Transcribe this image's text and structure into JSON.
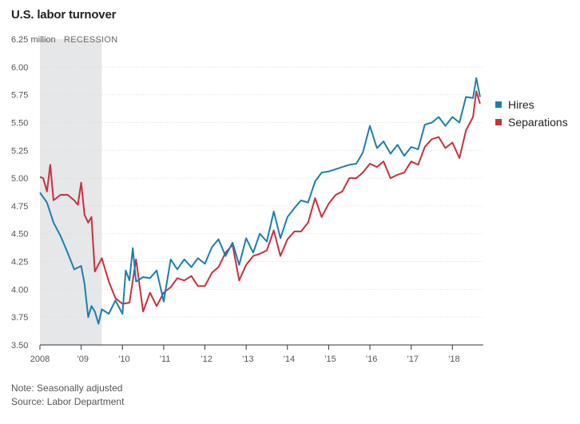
{
  "chart_data": {
    "type": "line",
    "title": "U.S. labor turnover",
    "y_unit_label": "million",
    "recession_label": "RECESSION",
    "recession_range": [
      2008.0,
      2009.5
    ],
    "ylim": [
      3.5,
      6.25
    ],
    "y_ticks": [
      3.5,
      3.75,
      4.0,
      4.25,
      4.5,
      4.75,
      5.0,
      5.25,
      5.5,
      5.75,
      6.0,
      6.25
    ],
    "y_tick_labels": [
      "3.50",
      "3.75",
      "4.00",
      "4.25",
      "4.50",
      "4.75",
      "5.00",
      "5.25",
      "5.50",
      "5.75",
      "6.00",
      "6.25"
    ],
    "xlim": [
      2008.0,
      2018.75
    ],
    "x_ticks": [
      2008,
      2009,
      2010,
      2011,
      2012,
      2013,
      2014,
      2015,
      2016,
      2017,
      2018
    ],
    "x_tick_labels": [
      "2008",
      "'09",
      "'10",
      "'11",
      "'12",
      "'13",
      "'14",
      "'15",
      "'16",
      "'17",
      "'18"
    ],
    "grid": true,
    "legend_position": "right",
    "series": [
      {
        "name": "Hires",
        "color": "#1a7fae",
        "points": [
          [
            2008.0,
            4.87
          ],
          [
            2008.17,
            4.78
          ],
          [
            2008.33,
            4.6
          ],
          [
            2008.5,
            4.48
          ],
          [
            2008.67,
            4.33
          ],
          [
            2008.83,
            4.18
          ],
          [
            2009.0,
            4.21
          ],
          [
            2009.08,
            4.05
          ],
          [
            2009.17,
            3.75
          ],
          [
            2009.25,
            3.85
          ],
          [
            2009.33,
            3.8
          ],
          [
            2009.42,
            3.69
          ],
          [
            2009.5,
            3.82
          ],
          [
            2009.67,
            3.78
          ],
          [
            2009.83,
            3.9
          ],
          [
            2010.0,
            3.78
          ],
          [
            2010.08,
            4.17
          ],
          [
            2010.17,
            4.08
          ],
          [
            2010.25,
            4.37
          ],
          [
            2010.33,
            4.07
          ],
          [
            2010.5,
            4.11
          ],
          [
            2010.67,
            4.1
          ],
          [
            2010.83,
            4.17
          ],
          [
            2011.0,
            3.89
          ],
          [
            2011.17,
            4.27
          ],
          [
            2011.33,
            4.18
          ],
          [
            2011.5,
            4.27
          ],
          [
            2011.67,
            4.2
          ],
          [
            2011.83,
            4.28
          ],
          [
            2012.0,
            4.23
          ],
          [
            2012.17,
            4.38
          ],
          [
            2012.33,
            4.45
          ],
          [
            2012.5,
            4.3
          ],
          [
            2012.67,
            4.42
          ],
          [
            2012.83,
            4.22
          ],
          [
            2013.0,
            4.46
          ],
          [
            2013.17,
            4.33
          ],
          [
            2013.33,
            4.5
          ],
          [
            2013.5,
            4.43
          ],
          [
            2013.67,
            4.7
          ],
          [
            2013.83,
            4.46
          ],
          [
            2014.0,
            4.65
          ],
          [
            2014.17,
            4.73
          ],
          [
            2014.33,
            4.8
          ],
          [
            2014.5,
            4.78
          ],
          [
            2014.67,
            4.97
          ],
          [
            2014.83,
            5.05
          ],
          [
            2015.0,
            5.06
          ],
          [
            2015.17,
            5.08
          ],
          [
            2015.33,
            5.1
          ],
          [
            2015.5,
            5.12
          ],
          [
            2015.67,
            5.13
          ],
          [
            2015.83,
            5.23
          ],
          [
            2016.0,
            5.47
          ],
          [
            2016.17,
            5.27
          ],
          [
            2016.33,
            5.33
          ],
          [
            2016.5,
            5.22
          ],
          [
            2016.67,
            5.3
          ],
          [
            2016.83,
            5.2
          ],
          [
            2017.0,
            5.28
          ],
          [
            2017.17,
            5.26
          ],
          [
            2017.33,
            5.48
          ],
          [
            2017.5,
            5.5
          ],
          [
            2017.67,
            5.55
          ],
          [
            2017.83,
            5.47
          ],
          [
            2018.0,
            5.55
          ],
          [
            2018.17,
            5.5
          ],
          [
            2018.33,
            5.73
          ],
          [
            2018.5,
            5.72
          ],
          [
            2018.58,
            5.9
          ],
          [
            2018.67,
            5.73
          ]
        ]
      },
      {
        "name": "Separations",
        "color": "#c7303d",
        "points": [
          [
            2008.0,
            5.01
          ],
          [
            2008.08,
            5.0
          ],
          [
            2008.17,
            4.88
          ],
          [
            2008.25,
            5.12
          ],
          [
            2008.33,
            4.8
          ],
          [
            2008.5,
            4.85
          ],
          [
            2008.67,
            4.85
          ],
          [
            2008.83,
            4.8
          ],
          [
            2008.92,
            4.76
          ],
          [
            2009.0,
            4.96
          ],
          [
            2009.08,
            4.67
          ],
          [
            2009.17,
            4.6
          ],
          [
            2009.25,
            4.65
          ],
          [
            2009.33,
            4.16
          ],
          [
            2009.5,
            4.28
          ],
          [
            2009.67,
            4.07
          ],
          [
            2009.83,
            3.92
          ],
          [
            2010.0,
            3.87
          ],
          [
            2010.17,
            3.88
          ],
          [
            2010.33,
            4.27
          ],
          [
            2010.5,
            3.8
          ],
          [
            2010.67,
            3.97
          ],
          [
            2010.83,
            3.85
          ],
          [
            2011.0,
            3.97
          ],
          [
            2011.17,
            4.02
          ],
          [
            2011.33,
            4.1
          ],
          [
            2011.5,
            4.08
          ],
          [
            2011.67,
            4.12
          ],
          [
            2011.83,
            4.03
          ],
          [
            2012.0,
            4.03
          ],
          [
            2012.17,
            4.15
          ],
          [
            2012.33,
            4.2
          ],
          [
            2012.5,
            4.33
          ],
          [
            2012.67,
            4.4
          ],
          [
            2012.83,
            4.08
          ],
          [
            2013.0,
            4.22
          ],
          [
            2013.17,
            4.3
          ],
          [
            2013.33,
            4.32
          ],
          [
            2013.5,
            4.35
          ],
          [
            2013.67,
            4.53
          ],
          [
            2013.83,
            4.3
          ],
          [
            2014.0,
            4.45
          ],
          [
            2014.17,
            4.52
          ],
          [
            2014.33,
            4.52
          ],
          [
            2014.5,
            4.6
          ],
          [
            2014.67,
            4.82
          ],
          [
            2014.83,
            4.65
          ],
          [
            2015.0,
            4.77
          ],
          [
            2015.17,
            4.85
          ],
          [
            2015.33,
            4.88
          ],
          [
            2015.5,
            5.0
          ],
          [
            2015.67,
            5.0
          ],
          [
            2015.83,
            5.05
          ],
          [
            2016.0,
            5.13
          ],
          [
            2016.17,
            5.1
          ],
          [
            2016.33,
            5.15
          ],
          [
            2016.5,
            5.0
          ],
          [
            2016.67,
            5.03
          ],
          [
            2016.83,
            5.05
          ],
          [
            2017.0,
            5.15
          ],
          [
            2017.17,
            5.12
          ],
          [
            2017.33,
            5.28
          ],
          [
            2017.5,
            5.35
          ],
          [
            2017.67,
            5.37
          ],
          [
            2017.83,
            5.27
          ],
          [
            2018.0,
            5.32
          ],
          [
            2018.17,
            5.18
          ],
          [
            2018.33,
            5.43
          ],
          [
            2018.5,
            5.55
          ],
          [
            2018.58,
            5.78
          ],
          [
            2018.67,
            5.67
          ]
        ]
      }
    ]
  },
  "footnotes": {
    "note": "Note: Seasonally adjusted",
    "source": "Source: Labor Department"
  }
}
